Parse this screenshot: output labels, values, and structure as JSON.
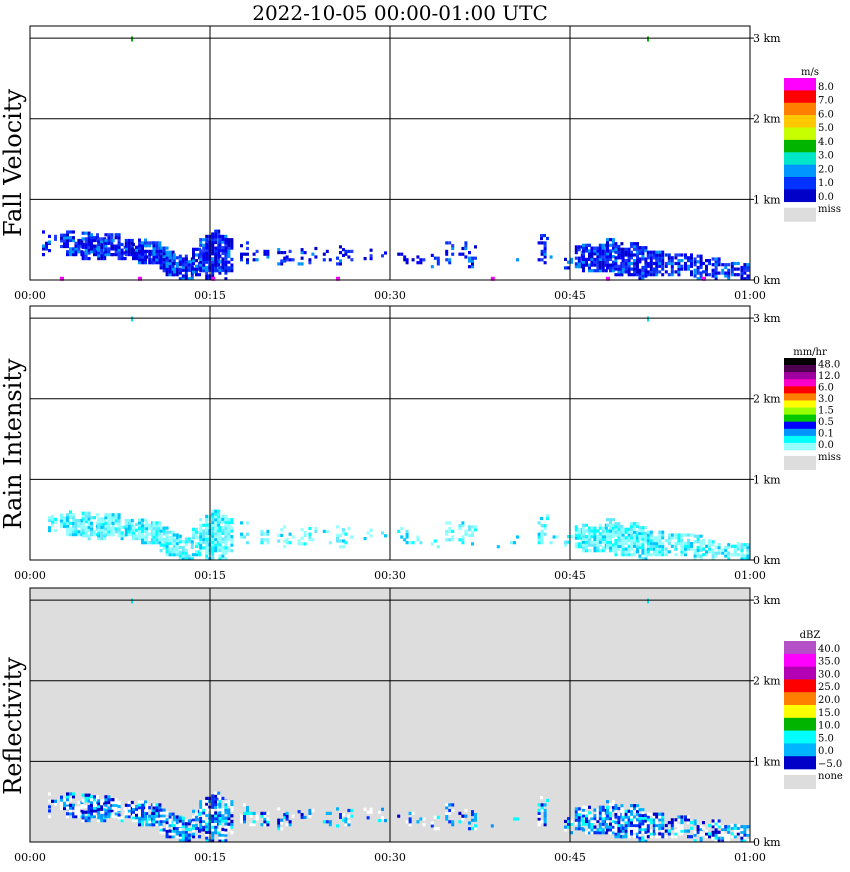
{
  "title": "2022-10-05   00:00-01:00 UTC",
  "chart_data": [
    {
      "type": "heatmap",
      "panel": "fall-velocity",
      "ylabel": "Fall Velocity",
      "x_ticks": [
        "00:00",
        "00:15",
        "00:30",
        "00:45",
        "01:00"
      ],
      "y_ticks": [
        "0 km",
        "1 km",
        "2 km",
        "3 km"
      ],
      "xlim": [
        0,
        60
      ],
      "ylim": [
        0,
        3.15
      ],
      "background": "#ffffff",
      "legend": {
        "unit": "m/s",
        "levels": [
          "8.0",
          "7.0",
          "6.0",
          "5.0",
          "4.0",
          "3.0",
          "2.0",
          "1.0",
          "0.0"
        ],
        "colors": [
          "#ff00ff",
          "#ff0000",
          "#ff8000",
          "#ffc800",
          "#c8ff00",
          "#00b400",
          "#00e6c8",
          "#0096ff",
          "#0032ff",
          "#0000c8"
        ],
        "missing_label": "miss",
        "missing_color": "#dddddd"
      }
    },
    {
      "type": "heatmap",
      "panel": "rain-intensity",
      "ylabel": "Rain Intensity",
      "x_ticks": [
        "00:00",
        "00:15",
        "00:30",
        "00:45",
        "01:00"
      ],
      "y_ticks": [
        "0 km",
        "1 km",
        "2 km",
        "3 km"
      ],
      "xlim": [
        0,
        60
      ],
      "ylim": [
        0,
        3.15
      ],
      "background": "#ffffff",
      "legend": {
        "unit": "mm/hr",
        "levels": [
          "48.0",
          "12.0",
          "6.0",
          "3.0",
          "1.5",
          "0.5",
          "0.1",
          "0.0"
        ],
        "colors": [
          "#000000",
          "#500050",
          "#a000a0",
          "#ff00c8",
          "#ff0000",
          "#ff8000",
          "#ffff00",
          "#96ff00",
          "#00c800",
          "#0000ff",
          "#0096ff",
          "#00ffff",
          "#96ffff"
        ],
        "missing_label": "miss",
        "missing_color": "#dddddd"
      }
    },
    {
      "type": "heatmap",
      "panel": "reflectivity",
      "ylabel": "Reflectivity",
      "x_ticks": [
        "00:00",
        "00:15",
        "00:30",
        "00:45",
        "01:00"
      ],
      "y_ticks": [
        "0 km",
        "1 km",
        "2 km",
        "3 km"
      ],
      "xlim": [
        0,
        60
      ],
      "ylim": [
        0,
        3.15
      ],
      "background": "#dddddd",
      "legend": {
        "unit": "dBZ",
        "levels": [
          "40.0",
          "35.0",
          "30.0",
          "25.0",
          "20.0",
          "15.0",
          "10.0",
          "5.0",
          "0.0",
          "−5.0"
        ],
        "colors": [
          "#b450c8",
          "#ff00ff",
          "#b400b4",
          "#ff0000",
          "#ff8000",
          "#ffff00",
          "#00b400",
          "#00ffff",
          "#00b4ff",
          "#0000c8"
        ],
        "missing_label": "none",
        "missing_color": "#dddddd"
      }
    }
  ],
  "echo_segments": [
    [
      0.2,
      0.4,
      0.5,
      0.1
    ],
    [
      1.0,
      0.6,
      0.3,
      0.2
    ],
    [
      1.5,
      0.55,
      0.35,
      0.3
    ],
    [
      2.5,
      0.55,
      0.4,
      0.9
    ],
    [
      3.0,
      0.6,
      0.3,
      0.7
    ],
    [
      3.7,
      0.5,
      0.3,
      0.9
    ],
    [
      4.3,
      0.6,
      0.25,
      0.8
    ],
    [
      5.0,
      0.55,
      0.3,
      0.8
    ],
    [
      5.6,
      0.5,
      0.25,
      1.0
    ],
    [
      6.2,
      0.55,
      0.3,
      0.9
    ],
    [
      6.8,
      0.55,
      0.3,
      0.8
    ],
    [
      7.3,
      0.45,
      0.25,
      0.7
    ],
    [
      7.9,
      0.5,
      0.3,
      0.9
    ],
    [
      8.5,
      0.45,
      0.25,
      0.9
    ],
    [
      9.0,
      0.5,
      0.2,
      0.9
    ],
    [
      9.6,
      0.45,
      0.2,
      0.8
    ],
    [
      10.2,
      0.45,
      0.2,
      1.0
    ],
    [
      10.8,
      0.4,
      0.1,
      0.8
    ],
    [
      11.3,
      0.35,
      0.05,
      0.9
    ],
    [
      11.9,
      0.3,
      0.05,
      0.7
    ],
    [
      12.4,
      0.3,
      0.0,
      0.8
    ],
    [
      12.9,
      0.25,
      0.0,
      0.6
    ],
    [
      13.5,
      0.4,
      0.05,
      0.7
    ],
    [
      14.1,
      0.5,
      0.1,
      0.8
    ],
    [
      14.6,
      0.55,
      0.0,
      0.9
    ],
    [
      15.1,
      0.6,
      0.1,
      0.9
    ],
    [
      15.7,
      0.55,
      0.0,
      0.8
    ],
    [
      16.2,
      0.5,
      0.1,
      0.8
    ],
    [
      17.5,
      0.45,
      0.2,
      0.4
    ],
    [
      18.3,
      0.4,
      0.2,
      0.3
    ],
    [
      19.2,
      0.35,
      0.2,
      0.4
    ],
    [
      20.6,
      0.4,
      0.15,
      0.3
    ],
    [
      21.3,
      0.35,
      0.2,
      0.3
    ],
    [
      22.3,
      0.38,
      0.15,
      0.4
    ],
    [
      23.2,
      0.4,
      0.2,
      0.3
    ],
    [
      24.4,
      0.35,
      0.2,
      0.3
    ],
    [
      25.5,
      0.4,
      0.15,
      0.4
    ],
    [
      26.2,
      0.38,
      0.2,
      0.3
    ],
    [
      27.8,
      0.4,
      0.25,
      0.3
    ],
    [
      29.0,
      0.4,
      0.25,
      0.3
    ],
    [
      30.6,
      0.4,
      0.2,
      0.3
    ],
    [
      31.3,
      0.35,
      0.2,
      0.3
    ],
    [
      32.2,
      0.3,
      0.2,
      0.3
    ],
    [
      33.4,
      0.3,
      0.15,
      0.4
    ],
    [
      34.6,
      0.45,
      0.2,
      0.5
    ],
    [
      35.7,
      0.45,
      0.2,
      0.4
    ],
    [
      36.5,
      0.4,
      0.15,
      0.4
    ],
    [
      38.4,
      0.2,
      0.15,
      0.2
    ],
    [
      40.0,
      0.3,
      0.2,
      0.3
    ],
    [
      41.2,
      0.3,
      0.3,
      0.3
    ],
    [
      42.3,
      0.45,
      0.2,
      0.6
    ],
    [
      42.5,
      0.55,
      0.5,
      0.6
    ],
    [
      43.3,
      0.3,
      0.2,
      0.2
    ],
    [
      44.5,
      0.3,
      0.1,
      0.3
    ],
    [
      45.4,
      0.4,
      0.15,
      0.7
    ],
    [
      46.0,
      0.45,
      0.1,
      0.8
    ],
    [
      46.7,
      0.4,
      0.1,
      0.8
    ],
    [
      47.4,
      0.45,
      0.1,
      0.9
    ],
    [
      48.0,
      0.5,
      0.1,
      0.9
    ],
    [
      48.7,
      0.45,
      0.05,
      0.8
    ],
    [
      49.3,
      0.4,
      0.05,
      0.9
    ],
    [
      50.0,
      0.45,
      0.05,
      0.9
    ],
    [
      50.7,
      0.4,
      0.0,
      0.8
    ],
    [
      51.4,
      0.35,
      0.05,
      0.9
    ],
    [
      52.1,
      0.35,
      0.05,
      0.8
    ],
    [
      52.9,
      0.3,
      0.05,
      0.6
    ],
    [
      53.7,
      0.3,
      0.05,
      0.7
    ],
    [
      54.5,
      0.3,
      0.05,
      0.6
    ],
    [
      55.3,
      0.3,
      0.0,
      0.7
    ],
    [
      56.0,
      0.25,
      0.05,
      0.6
    ],
    [
      56.8,
      0.25,
      0.0,
      0.7
    ],
    [
      57.6,
      0.2,
      0.0,
      0.8
    ],
    [
      58.4,
      0.2,
      0.05,
      0.8
    ],
    [
      59.2,
      0.2,
      0.0,
      0.9
    ]
  ],
  "top_speckles_min": [
    8.5,
    51.5
  ]
}
